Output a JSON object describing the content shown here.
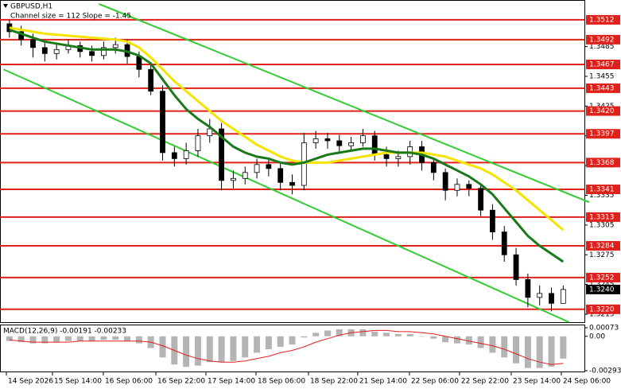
{
  "chart_data": [
    {
      "type": "candlestick",
      "title": "GBPUSD,H1",
      "subtitle": "Channel size = 112 Slope = -1.45",
      "xlim": [
        -0.8,
        48.8
      ],
      "ylim": [
        1.3207,
        1.3532
      ],
      "yticks": [
        1.3485,
        1.3455,
        1.3425,
        1.3395,
        1.3365,
        1.3335,
        1.3305,
        1.3275,
        1.3245,
        1.3215
      ],
      "up_color": "#ffffff",
      "down_color": "#000000",
      "open": [
        1.3508,
        1.35,
        1.3492,
        1.3484,
        1.3478,
        1.3482,
        1.3486,
        1.348,
        1.3476,
        1.3484,
        1.3487,
        1.3475,
        1.3462,
        1.344,
        1.3378,
        1.3372,
        1.338,
        1.3395,
        1.3402,
        1.335,
        1.3352,
        1.3358,
        1.3366,
        1.3362,
        1.3348,
        1.3345,
        1.3388,
        1.3392,
        1.339,
        1.3385,
        1.3388,
        1.3395,
        1.3376,
        1.3372,
        1.3374,
        1.3384,
        1.3368,
        1.3358,
        1.334,
        1.3346,
        1.3342,
        1.332,
        1.3298,
        1.3275,
        1.325,
        1.3232,
        1.3236,
        1.3226
      ],
      "high": [
        1.3512,
        1.3506,
        1.3498,
        1.349,
        1.3488,
        1.3492,
        1.349,
        1.3486,
        1.349,
        1.3494,
        1.3492,
        1.348,
        1.3468,
        1.3446,
        1.3384,
        1.3388,
        1.3402,
        1.3412,
        1.3408,
        1.336,
        1.3364,
        1.3372,
        1.3372,
        1.3368,
        1.3356,
        1.3398,
        1.34,
        1.3398,
        1.3396,
        1.3394,
        1.3402,
        1.34,
        1.3384,
        1.338,
        1.339,
        1.339,
        1.3372,
        1.3362,
        1.3352,
        1.335,
        1.3346,
        1.3326,
        1.3304,
        1.3282,
        1.3256,
        1.3244,
        1.3242,
        1.3244
      ],
      "low": [
        1.3494,
        1.3486,
        1.3474,
        1.347,
        1.3472,
        1.3478,
        1.3474,
        1.347,
        1.3472,
        1.3478,
        1.3468,
        1.3454,
        1.3436,
        1.337,
        1.3364,
        1.3366,
        1.3374,
        1.3388,
        1.334,
        1.3342,
        1.3346,
        1.3352,
        1.3354,
        1.334,
        1.3336,
        1.334,
        1.3382,
        1.3382,
        1.3378,
        1.338,
        1.3384,
        1.337,
        1.3364,
        1.3364,
        1.3366,
        1.336,
        1.335,
        1.333,
        1.3334,
        1.3334,
        1.3314,
        1.329,
        1.3268,
        1.3244,
        1.3222,
        1.3224,
        1.3218,
        1.3228
      ],
      "close": [
        1.35,
        1.3492,
        1.3484,
        1.3478,
        1.3482,
        1.3486,
        1.348,
        1.3476,
        1.3484,
        1.3487,
        1.3475,
        1.3462,
        1.344,
        1.3378,
        1.3372,
        1.338,
        1.3395,
        1.3402,
        1.335,
        1.3352,
        1.3358,
        1.3366,
        1.3362,
        1.3348,
        1.3345,
        1.3388,
        1.3392,
        1.339,
        1.3385,
        1.3388,
        1.3395,
        1.3376,
        1.3372,
        1.3374,
        1.3384,
        1.3368,
        1.3358,
        1.334,
        1.3346,
        1.3342,
        1.332,
        1.3298,
        1.3275,
        1.325,
        1.3232,
        1.3236,
        1.3226,
        1.324
      ],
      "series": [
        {
          "color": "#f5e400",
          "values": [
            1.3504,
            1.3502,
            1.35,
            1.3498,
            1.3497,
            1.3496,
            1.3495,
            1.3494,
            1.3493,
            1.3492,
            1.349,
            1.3484,
            1.3474,
            1.3462,
            1.345,
            1.344,
            1.343,
            1.342,
            1.341,
            1.3402,
            1.3394,
            1.3386,
            1.338,
            1.3374,
            1.337,
            1.3368,
            1.3368,
            1.3368,
            1.337,
            1.3372,
            1.3374,
            1.3376,
            1.3378,
            1.3378,
            1.3378,
            1.3378,
            1.3376,
            1.3374,
            1.337,
            1.3366,
            1.3362,
            1.3356,
            1.3348,
            1.334,
            1.333,
            1.332,
            1.331,
            1.33
          ]
        },
        {
          "color": "#1a7a1a",
          "values": [
            1.3502,
            1.3498,
            1.3494,
            1.349,
            1.3488,
            1.3486,
            1.3484,
            1.3482,
            1.3482,
            1.3482,
            1.348,
            1.3476,
            1.3468,
            1.3452,
            1.3436,
            1.3422,
            1.3412,
            1.3404,
            1.3394,
            1.3384,
            1.3378,
            1.3374,
            1.3372,
            1.3368,
            1.3366,
            1.3368,
            1.3372,
            1.3376,
            1.3378,
            1.338,
            1.3382,
            1.3382,
            1.338,
            1.3378,
            1.3378,
            1.3376,
            1.3372,
            1.3366,
            1.336,
            1.3354,
            1.3346,
            1.3336,
            1.3322,
            1.3308,
            1.3294,
            1.3284,
            1.3276,
            1.3268
          ]
        }
      ],
      "channel_color": "#33cc33",
      "channel_lines": [
        {
          "x": [
            7.6,
            49.2
          ],
          "y": [
            1.3528,
            1.3328
          ]
        },
        {
          "x": [
            -0.5,
            47.5
          ],
          "y": [
            1.3462,
            1.3207
          ]
        }
      ],
      "level_color": "#e0201a",
      "levels": [
        1.3512,
        1.3492,
        1.3467,
        1.3443,
        {
          "value": 1.342,
          "label": "1.3420"
        },
        1.3397,
        1.3368,
        1.3341,
        1.3313,
        1.3284,
        1.3252,
        {
          "value": 1.322,
          "label": "1.3220"
        }
      ],
      "current_price_color": "#000000",
      "current_price": {
        "value": 1.324,
        "label": "1.3240"
      }
    },
    {
      "type": "macd",
      "title": "MACD(12,26,9) -0.00191 -0.00233",
      "xlim": [
        -0.8,
        48.8
      ],
      "ylim": [
        -0.00293,
        0.00073
      ],
      "yticks": [
        {
          "value": 0.00073,
          "label": "0.00073"
        },
        {
          "value": 0,
          "label": "0.00"
        },
        {
          "value": -0.00293,
          "label": "-0.00293"
        }
      ],
      "color": "#b4b4b4",
      "values": [
        -0.0004,
        -0.0005,
        -0.0006,
        -0.0006,
        -0.0005,
        -0.0004,
        -0.0004,
        -0.0004,
        -0.0003,
        -0.0003,
        -0.0004,
        -0.0006,
        -0.001,
        -0.0018,
        -0.0024,
        -0.0026,
        -0.0025,
        -0.0022,
        -0.0022,
        -0.0021,
        -0.0018,
        -0.0014,
        -0.0011,
        -0.0009,
        -0.0007,
        -0.0001,
        0.0003,
        0.0005,
        0.0006,
        0.0006,
        0.0006,
        0.0004,
        0.0003,
        0.0002,
        0.0002,
        0.0,
        -0.0002,
        -0.0005,
        -0.0006,
        -0.0007,
        -0.001,
        -0.0014,
        -0.0018,
        -0.0023,
        -0.0027,
        -0.0027,
        -0.0026,
        -0.0019
      ],
      "signal": {
        "color": "#e02020",
        "values": [
          -0.0003,
          -0.0004,
          -0.0005,
          -0.0005,
          -0.0005,
          -0.0005,
          -0.0004,
          -0.0004,
          -0.0004,
          -0.0004,
          -0.0004,
          -0.0004,
          -0.0005,
          -0.0008,
          -0.0012,
          -0.0016,
          -0.0019,
          -0.0021,
          -0.0022,
          -0.0022,
          -0.0021,
          -0.0019,
          -0.0017,
          -0.0014,
          -0.0012,
          -0.0009,
          -0.0005,
          -0.0002,
          0.0001,
          0.0003,
          0.0004,
          0.0005,
          0.0005,
          0.0004,
          0.0004,
          0.0003,
          0.0002,
          0.0,
          -0.0002,
          -0.0004,
          -0.0006,
          -0.0008,
          -0.0011,
          -0.0015,
          -0.0019,
          -0.0022,
          -0.0024,
          -0.0023
        ]
      },
      "xticks": [
        {
          "value": -0.26,
          "label": "14 Sep 2026"
        },
        {
          "value": 3.65,
          "label": "15 Sep 14:00"
        },
        {
          "value": 7.97,
          "label": "16 Sep 06:00"
        },
        {
          "value": 12.43,
          "label": "16 Sep 22:00"
        },
        {
          "value": 16.68,
          "label": "17 Sep 14:00"
        },
        {
          "value": 20.93,
          "label": "18 Sep 06:00"
        },
        {
          "value": 25.38,
          "label": "18 Sep 22:00"
        },
        {
          "value": 29.56,
          "label": "21 Sep 14:00"
        },
        {
          "value": 33.95,
          "label": "22 Sep 06:00"
        },
        {
          "value": 38.2,
          "label": "22 Sep 22:00"
        },
        {
          "value": 42.59,
          "label": "23 Sep 14:00"
        },
        {
          "value": 46.84,
          "label": "24 Sep 06:00"
        }
      ]
    }
  ]
}
